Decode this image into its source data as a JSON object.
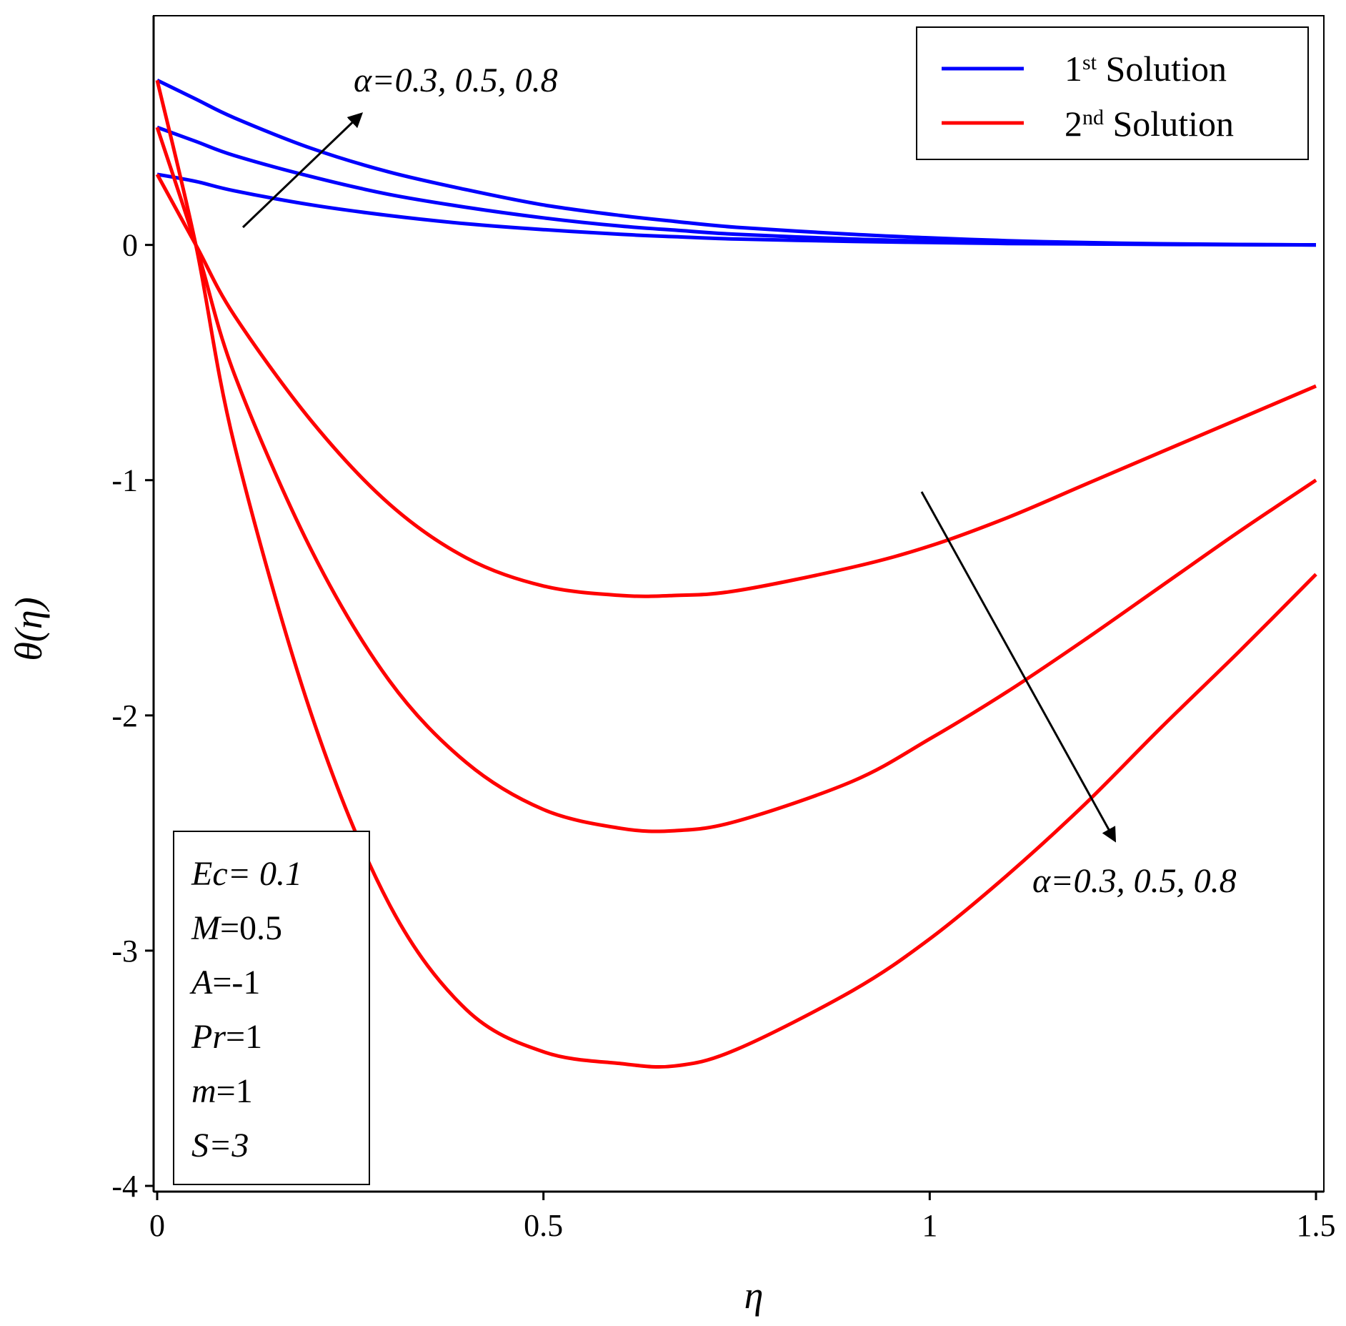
{
  "chart_data": {
    "type": "line",
    "title": "",
    "xlabel": "η",
    "ylabel": "θ(η)",
    "xlim": [
      0,
      1.5
    ],
    "ylim": [
      -4,
      0.95
    ],
    "xticks": [
      0,
      0.5,
      1,
      1.5
    ],
    "xtick_labels": [
      "0",
      "0.5",
      "1",
      "1.5"
    ],
    "yticks": [
      0,
      -1,
      -2,
      -3,
      -4
    ],
    "ytick_labels": [
      "0",
      "-1",
      "-2",
      "-3",
      "-4"
    ],
    "x": [
      0,
      0.05,
      0.1,
      0.2,
      0.3,
      0.4,
      0.5,
      0.6,
      0.67,
      0.75,
      0.9,
      1.0,
      1.1,
      1.2,
      1.3,
      1.4,
      1.5
    ],
    "series": [
      {
        "name": "1st Solution, α=0.3",
        "color": "#0000ff",
        "group": "first",
        "values": [
          0.3,
          0.27,
          0.23,
          0.17,
          0.125,
          0.09,
          0.065,
          0.045,
          0.035,
          0.025,
          0.015,
          0.01,
          0.006,
          0.004,
          0.002,
          0.001,
          0.0
        ]
      },
      {
        "name": "1st Solution, α=0.5",
        "color": "#0000ff",
        "group": "first",
        "values": [
          0.5,
          0.44,
          0.38,
          0.29,
          0.215,
          0.16,
          0.115,
          0.08,
          0.063,
          0.045,
          0.025,
          0.016,
          0.01,
          0.006,
          0.003,
          0.001,
          0.0
        ]
      },
      {
        "name": "1st Solution, α=0.8",
        "color": "#0000ff",
        "group": "first",
        "values": [
          0.7,
          0.62,
          0.54,
          0.41,
          0.31,
          0.235,
          0.17,
          0.125,
          0.1,
          0.075,
          0.045,
          0.03,
          0.018,
          0.01,
          0.005,
          0.002,
          0.0
        ]
      },
      {
        "name": "2nd Solution, α=0.3",
        "color": "#ff0000",
        "group": "second",
        "values": [
          0.3,
          0.0,
          -0.3,
          -0.75,
          -1.1,
          -1.33,
          -1.45,
          -1.49,
          -1.49,
          -1.47,
          -1.37,
          -1.28,
          -1.16,
          -1.02,
          -0.88,
          -0.74,
          -0.6
        ]
      },
      {
        "name": "2nd Solution, α=0.5",
        "color": "#ff0000",
        "group": "second",
        "values": [
          0.5,
          0.0,
          -0.55,
          -1.3,
          -1.85,
          -2.2,
          -2.4,
          -2.48,
          -2.49,
          -2.45,
          -2.28,
          -2.1,
          -1.9,
          -1.68,
          -1.45,
          -1.22,
          -1.0
        ]
      },
      {
        "name": "2nd Solution, α=0.8",
        "color": "#ff0000",
        "group": "second",
        "values": [
          0.7,
          0.0,
          -0.85,
          -2.0,
          -2.8,
          -3.25,
          -3.43,
          -3.48,
          -3.49,
          -3.42,
          -3.17,
          -2.95,
          -2.68,
          -2.38,
          -2.05,
          -1.73,
          -1.4
        ]
      }
    ],
    "legend": {
      "position": "top-right",
      "entries": [
        {
          "label_prefix": "1",
          "label_sup": "st",
          "label_suffix": " Solution",
          "color": "#0000ff"
        },
        {
          "label_prefix": "2",
          "label_sup": "nd",
          "label_suffix": " Solution",
          "color": "#ff0000"
        }
      ]
    },
    "annotations": {
      "top": "α=0.3, 0.5, 0.8",
      "bottom": "α=0.3, 0.5, 0.8"
    },
    "parameter_box": [
      {
        "symbol": "Ec",
        "rest": "= 0.1",
        "rest_italic": true
      },
      {
        "symbol": "M",
        "rest": "=0.5",
        "rest_italic": false
      },
      {
        "symbol": "A",
        "rest": "=-1",
        "rest_italic": false
      },
      {
        "symbol": "Pr",
        "rest": "=1",
        "rest_italic": false
      },
      {
        "symbol": "m",
        "rest": "=1",
        "rest_italic": false
      },
      {
        "symbol": "S",
        "rest": "=3",
        "rest_italic": true
      }
    ]
  }
}
